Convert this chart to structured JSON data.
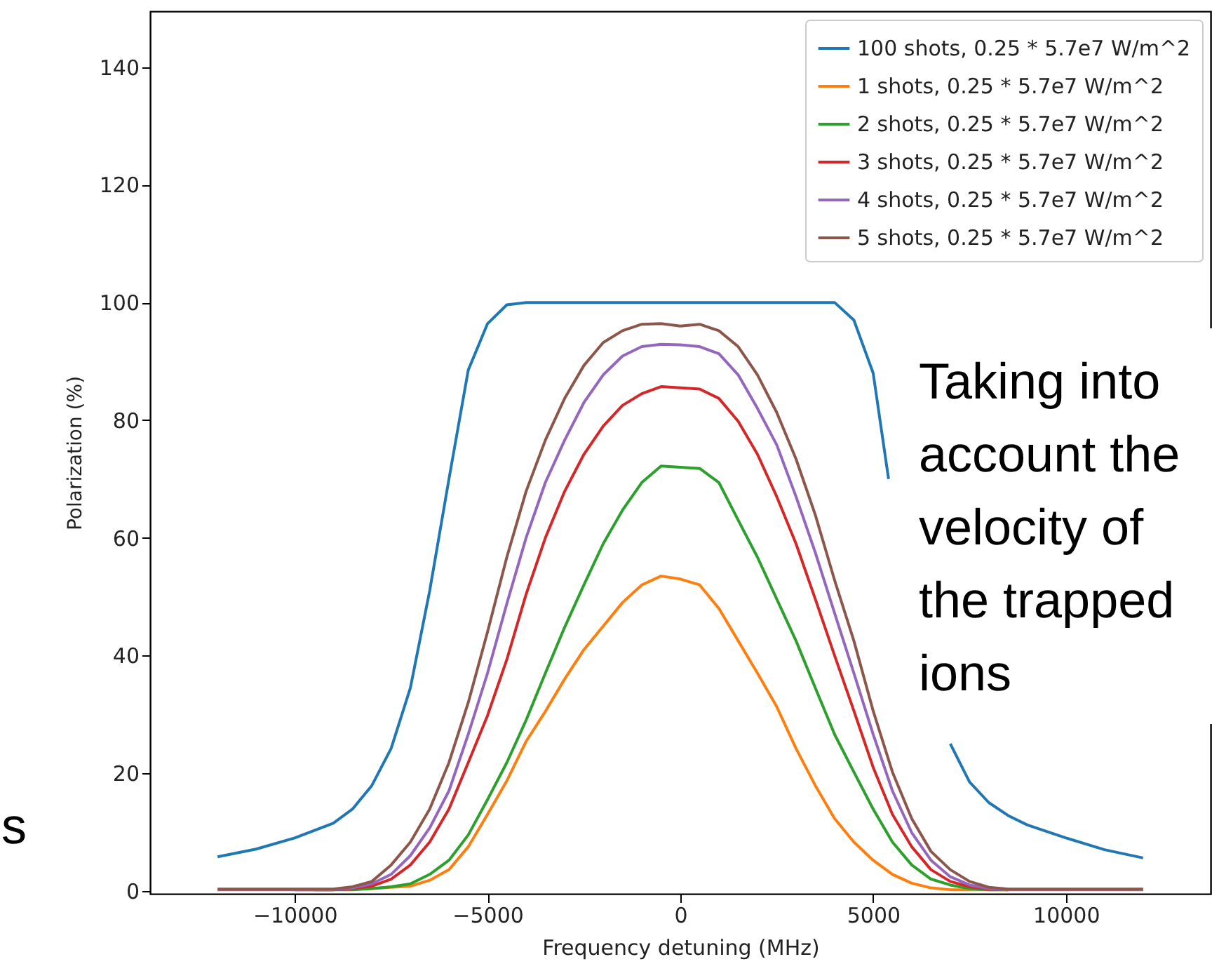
{
  "chart_data": {
    "type": "line",
    "xlabel": "Frequency detuning (MHz)",
    "ylabel": "Polarization (%)",
    "x": [
      -12000,
      -11500,
      -11000,
      -10500,
      -10000,
      -9500,
      -9000,
      -8500,
      -8000,
      -7500,
      -7000,
      -6500,
      -6000,
      -5500,
      -5000,
      -4500,
      -4000,
      -3500,
      -3000,
      -2500,
      -2000,
      -1500,
      -1000,
      -500,
      0,
      500,
      1000,
      1500,
      2000,
      2500,
      3000,
      3500,
      4000,
      4500,
      5000,
      5500,
      6000,
      6500,
      7000,
      7500,
      8000,
      8500,
      9000,
      9500,
      10000,
      10500,
      11000,
      11500,
      12000
    ],
    "series": [
      {
        "name": "100 shots, 0.25 * 5.7e7 W/m^2",
        "color": "#1f77b4",
        "x": [
          -12000,
          -11000,
          -10000,
          -9000,
          -8500,
          -8000,
          -7500,
          -7000,
          -6500,
          -6000,
          -5500,
          -5000,
          -4500,
          -4000,
          3500,
          4000,
          4500,
          5000,
          5400,
          6200,
          7000,
          7500,
          8000,
          8500,
          9000,
          10000,
          11000,
          12000
        ],
        "values": [
          5.8,
          7.1,
          9,
          11.5,
          13.9,
          17.9,
          24.2,
          34.5,
          51,
          70,
          88.5,
          96.4,
          99.6,
          100,
          100,
          100,
          97,
          88,
          70,
          null,
          25,
          18.5,
          15,
          12.8,
          11.2,
          9,
          7,
          5.6
        ]
      },
      {
        "name": "1 shots, 0.25 * 5.7e7 W/m^2",
        "color": "#ff7f0e",
        "values": [
          null,
          null,
          null,
          null,
          null,
          null,
          null,
          0.2,
          0.4,
          0.6,
          0.8,
          1.8,
          3.6,
          7.5,
          13,
          18.7,
          25.4,
          30.5,
          36,
          41,
          45,
          49,
          52,
          53.5,
          53,
          52,
          48,
          42.5,
          37,
          31.3,
          24.2,
          17.9,
          12.3,
          8.3,
          5.2,
          2.8,
          1.3,
          0.5,
          0.2,
          0.2,
          0.2,
          0.2,
          null,
          null,
          null,
          null,
          null,
          null,
          null
        ]
      },
      {
        "name": "2 shots, 0.25 * 5.7e7 W/m^2",
        "color": "#2ca02c",
        "values": [
          null,
          null,
          null,
          null,
          null,
          0.2,
          0.2,
          0.2,
          0.4,
          0.7,
          1.2,
          2.8,
          5.2,
          9.5,
          15.5,
          21.8,
          29,
          37,
          44.8,
          52,
          59,
          64.7,
          69.4,
          72.2,
          72,
          71.8,
          69.4,
          63,
          56.7,
          49.6,
          42.5,
          34.5,
          26.6,
          20.2,
          13.9,
          8.3,
          4.4,
          2,
          1,
          0.4,
          0.2,
          0.2,
          null,
          null,
          null,
          null,
          null,
          null,
          null
        ]
      },
      {
        "name": "3 shots, 0.25 * 5.7e7 W/m^2",
        "color": "#d62728",
        "values": [
          null,
          null,
          null,
          null,
          0.2,
          0.2,
          0.2,
          0.4,
          0.8,
          2,
          4.4,
          8.3,
          13.9,
          21.8,
          29.8,
          39.3,
          50.4,
          60,
          67.9,
          74.2,
          79,
          82.5,
          84.5,
          85.7,
          85.5,
          85.3,
          83.7,
          79.8,
          74.2,
          67,
          59,
          49.6,
          40,
          30.6,
          21,
          13,
          7.5,
          3.6,
          1.6,
          0.7,
          0.3,
          0.2,
          null,
          null,
          null,
          null,
          null,
          null,
          null
        ]
      },
      {
        "name": "4 shots, 0.25 * 5.7e7 W/m^2",
        "color": "#9467bd",
        "values": [
          0.2,
          0.2,
          0.2,
          0.2,
          0.2,
          0.2,
          0.2,
          0.5,
          1.2,
          2.8,
          6,
          10.7,
          17,
          26.6,
          37,
          48.8,
          60,
          69.4,
          76.6,
          83,
          87.7,
          90.9,
          92.5,
          92.9,
          92.8,
          92.5,
          91.3,
          87.7,
          82,
          75.8,
          67,
          57.5,
          47.2,
          37,
          26.6,
          17,
          9.9,
          5.2,
          2.4,
          1,
          0.4,
          0.2,
          0.2,
          0.2,
          0.2,
          0.2,
          0.2,
          0.2,
          0.2
        ]
      },
      {
        "name": "5 shots, 0.25 * 5.7e7 W/m^2",
        "color": "#8c564b",
        "values": [
          0.3,
          0.3,
          0.3,
          0.3,
          0.3,
          0.3,
          0.3,
          0.7,
          1.6,
          4.4,
          8.3,
          13.9,
          21.8,
          32,
          44,
          56.7,
          67.9,
          76.6,
          83.7,
          89.3,
          93.2,
          95.2,
          96.3,
          96.4,
          96,
          96.3,
          95.2,
          92.5,
          87.7,
          81.3,
          73.4,
          63.9,
          52.8,
          42.5,
          30.6,
          20.2,
          12.3,
          6.7,
          3.6,
          1.6,
          0.6,
          0.3,
          0.3,
          0.3,
          0.3,
          0.3,
          0.3,
          0.3,
          0.3
        ]
      }
    ],
    "xlim": [
      -13750,
      13750
    ],
    "ylim": [
      -0.5,
      149.5
    ],
    "xticks": [
      -10000,
      -5000,
      0,
      5000,
      10000
    ],
    "yticks": [
      0,
      20,
      40,
      60,
      80,
      100,
      120,
      140
    ],
    "legend": "top right",
    "grid": false,
    "annotations": [
      "Taking into account the velocity of the trapped ions",
      "s"
    ]
  }
}
